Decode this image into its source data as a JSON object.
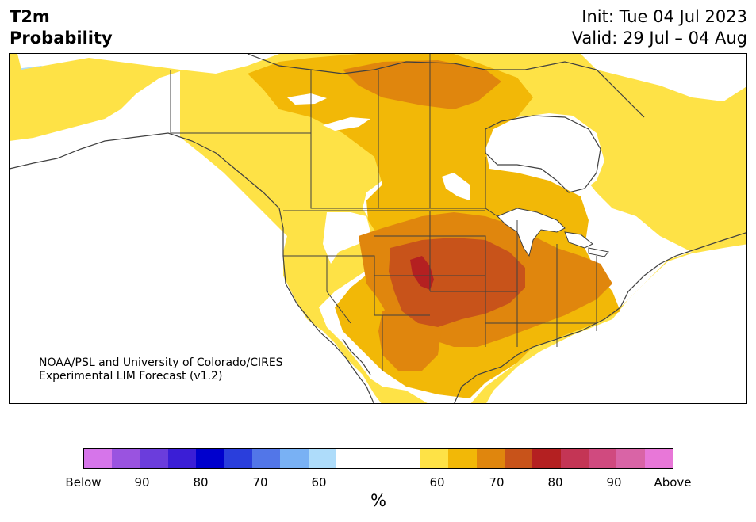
{
  "header": {
    "title_line1": "T2m",
    "title_line2": "Probability",
    "init_text": "Init: Tue 04 Jul 2023",
    "valid_text": "Valid: 29 Jul – 04 Aug"
  },
  "credit": {
    "line1": "NOAA/PSL and University of Colorado/CIRES",
    "line2": "Experimental LIM Forecast (v1.2)"
  },
  "colorbar": {
    "unit_label": "%",
    "tick_labels": [
      "Below",
      "90",
      "80",
      "70",
      "60",
      "60",
      "70",
      "80",
      "90",
      "Above"
    ],
    "colors_below": [
      "#d675ea",
      "#9a53e0",
      "#6b3ddc",
      "#3b1ed6",
      "#0000cd",
      "#2a3edc",
      "#5276e8",
      "#79b1f4",
      "#aedcfa"
    ],
    "color_neutral": "#ffffff",
    "colors_above": [
      "#fee246",
      "#f2b807",
      "#e0860d",
      "#c8531a",
      "#b42021",
      "#c43555",
      "#d04a7f",
      "#d964a6",
      "#e877d8"
    ]
  },
  "map": {
    "region": "North America",
    "colors": {
      "land_neutral": "#ffffff",
      "p60_below": "#aedcfa",
      "p70_below": "#79b1f4",
      "p60": "#fee246",
      "p65": "#f2b807",
      "p70": "#e0860d",
      "p75": "#c8531a",
      "p80": "#b42021",
      "border": "#404040"
    }
  }
}
